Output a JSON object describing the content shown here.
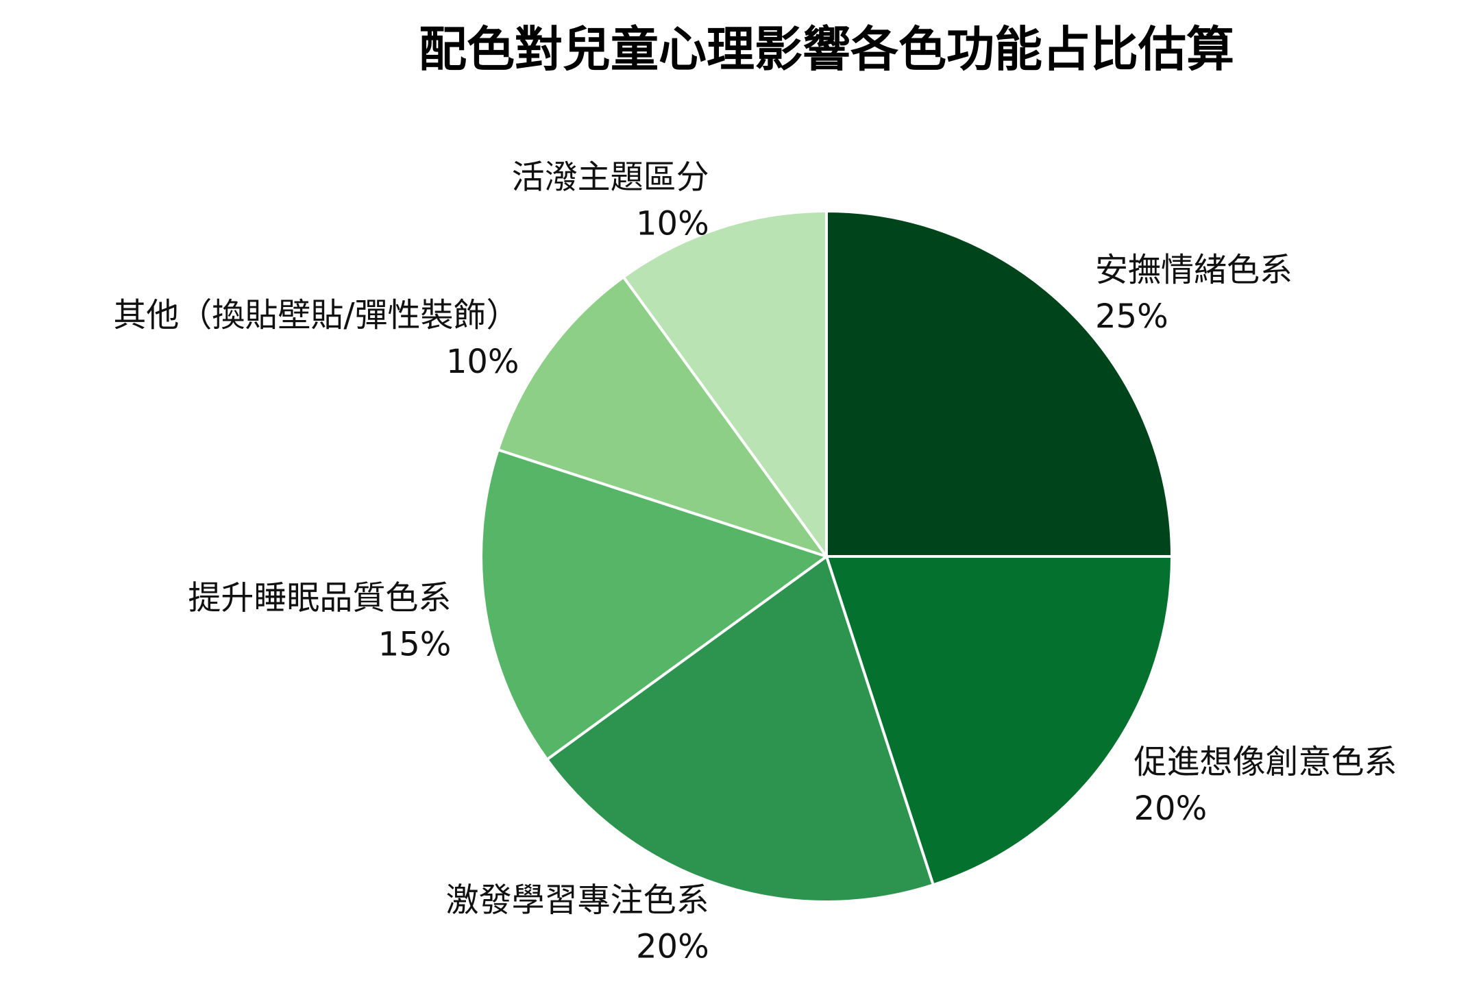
{
  "chart_data": {
    "type": "pie",
    "title": "配色對兒童心理影響各色功能占比估算",
    "start_angle_deg": 90,
    "direction": "clockwise",
    "categories": [
      "安撫情緒色系",
      "促進想像創意色系",
      "激發學習專注色系",
      "提升睡眠品質色系",
      "其他（換貼壁貼/彈性裝飾）",
      "活潑主題區分"
    ],
    "values": [
      25,
      20,
      20,
      15,
      10,
      10
    ],
    "value_labels": [
      "25%",
      "20%",
      "20%",
      "15%",
      "10%",
      "10%"
    ],
    "colors": [
      "#00441b",
      "#05712f",
      "#2c944e",
      "#56b567",
      "#8ecf88",
      "#b9e3b2"
    ],
    "edge_color": "#ffffff"
  }
}
